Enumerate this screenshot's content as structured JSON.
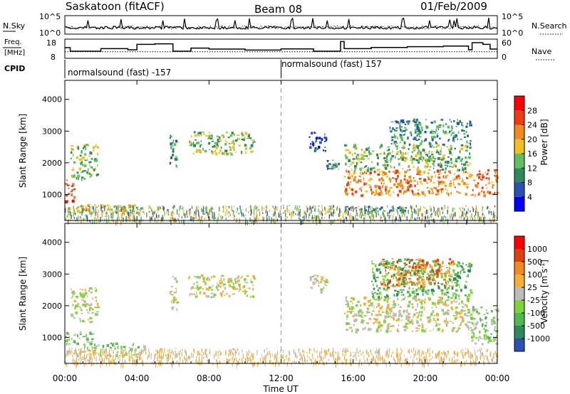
{
  "header": {
    "station": "Saskatoon (fitACF)",
    "beam": "Beam 08",
    "date": "01/Feb/2009"
  },
  "meta_panels": {
    "nsky": {
      "label": "N.Sky",
      "scale_top": "10^5",
      "scale_bottom": "10^0"
    },
    "nsearch": {
      "label": "N.Search",
      "scale_top": "10^5",
      "scale_bottom": "10^0"
    },
    "freq": {
      "label_top": "Freq.",
      "label_bottom": "[MHz]",
      "ticks": [
        "18",
        "8"
      ]
    },
    "nave": {
      "label": "Nave",
      "ticks": [
        "60",
        "0"
      ]
    },
    "cpid": {
      "label": "CPID",
      "segments": [
        {
          "text": "normalsound (fast) -157",
          "start_hour": 0,
          "end_hour": 12
        },
        {
          "text": "normalsound (fast) 157",
          "start_hour": 12,
          "end_hour": 24
        }
      ]
    },
    "freq_steps": [
      [
        0,
        13.5
      ],
      [
        0.3,
        11
      ],
      [
        2.0,
        12.8
      ],
      [
        3.5,
        12
      ],
      [
        4.0,
        15.8
      ],
      [
        5.0,
        16.2
      ],
      [
        6.0,
        11
      ],
      [
        7.0,
        13.2
      ],
      [
        8.0,
        12.5
      ],
      [
        10.0,
        11.8
      ],
      [
        12.0,
        12.6
      ],
      [
        13.8,
        11
      ],
      [
        15.3,
        17.8
      ],
      [
        15.5,
        12.8
      ],
      [
        17.0,
        13.6
      ],
      [
        19.0,
        14.2
      ],
      [
        21.0,
        14.6
      ],
      [
        22.4,
        12
      ],
      [
        22.6,
        17
      ],
      [
        23.2,
        15.8
      ],
      [
        23.6,
        12.5
      ],
      [
        24.0,
        12.5
      ]
    ],
    "nave_mean": 24
  },
  "chart_data": [
    {
      "type": "heatmap",
      "name": "Power",
      "ylabel": "Slant Range [km]",
      "ylim": [
        180,
        4600
      ],
      "yticks": [
        1000,
        2000,
        3000,
        4000
      ],
      "xlim": [
        0,
        24
      ],
      "colorbar": {
        "label": "Power [dB]",
        "ticks": [
          "4",
          "8",
          "12",
          "16",
          "20",
          "24",
          "28"
        ],
        "colors": [
          "#0000ff",
          "#2a4fb5",
          "#2e8a5a",
          "#5fc05f",
          "#f0c020",
          "#f08a20",
          "#f03a10",
          "#ff0000"
        ]
      },
      "regions": [
        {
          "t": [
            0.3,
            1.8
          ],
          "r": [
            1500,
            2600
          ],
          "level": 3
        },
        {
          "t": [
            0.0,
            0.5
          ],
          "r": [
            800,
            1500
          ],
          "level": 6
        },
        {
          "t": [
            0.0,
            4.5
          ],
          "r": [
            450,
            700
          ],
          "level": 4
        },
        {
          "t": [
            5.8,
            6.2
          ],
          "r": [
            1900,
            3000
          ],
          "level": 2
        },
        {
          "t": [
            6.8,
            10.5
          ],
          "r": [
            2300,
            3000
          ],
          "level": 3
        },
        {
          "t": [
            13.5,
            14.5
          ],
          "r": [
            2400,
            3000
          ],
          "level": 1
        },
        {
          "t": [
            14.5,
            15.2
          ],
          "r": [
            1800,
            2100
          ],
          "level": 2
        },
        {
          "t": [
            15.5,
            24.0
          ],
          "r": [
            1000,
            1800
          ],
          "level": 5
        },
        {
          "t": [
            15.5,
            22.5
          ],
          "r": [
            1800,
            2600
          ],
          "level": 3
        },
        {
          "t": [
            18.0,
            22.5
          ],
          "r": [
            2600,
            3400
          ],
          "level": 2
        },
        {
          "t": [
            15.5,
            19.0
          ],
          "r": [
            450,
            650
          ],
          "level": 2
        }
      ]
    },
    {
      "type": "heatmap",
      "name": "Velocity",
      "ylabel": "Slant Range [km]",
      "ylim": [
        180,
        4600
      ],
      "yticks": [
        1000,
        2000,
        3000,
        4000
      ],
      "xlim": [
        0,
        24
      ],
      "colorbar": {
        "label": "Velocity [m s^-1]",
        "ticks": [
          "1000",
          "500",
          "100",
          "25",
          "-25",
          "-100",
          "-500",
          "-1000"
        ],
        "colors": [
          "#2a4fb5",
          "#2e8a5a",
          "#4fb84f",
          "#7cd63a",
          "#bcbcbc",
          "#f5b03a",
          "#f08a20",
          "#e04010",
          "#ff0000"
        ]
      },
      "regions": [
        {
          "t": [
            0.3,
            1.8
          ],
          "r": [
            1500,
            2600
          ],
          "level": 4
        },
        {
          "t": [
            0.0,
            1.5
          ],
          "r": [
            800,
            1200
          ],
          "level": 3
        },
        {
          "t": [
            1.0,
            4.5
          ],
          "r": [
            600,
            850
          ],
          "level": 3
        },
        {
          "t": [
            0.0,
            4.0
          ],
          "r": [
            450,
            600
          ],
          "level": 4
        },
        {
          "t": [
            5.8,
            6.2
          ],
          "r": [
            1900,
            3000
          ],
          "level": 4
        },
        {
          "t": [
            6.8,
            10.5
          ],
          "r": [
            2300,
            3000
          ],
          "level": 4
        },
        {
          "t": [
            13.5,
            14.5
          ],
          "r": [
            2400,
            3000
          ],
          "level": 4
        },
        {
          "t": [
            15.5,
            22.5
          ],
          "r": [
            1200,
            2300
          ],
          "level": 4
        },
        {
          "t": [
            22.5,
            24.0
          ],
          "r": [
            800,
            2000
          ],
          "level": 3
        },
        {
          "t": [
            17.0,
            22.5
          ],
          "r": [
            2300,
            3500
          ],
          "level": 2
        },
        {
          "t": [
            17.5,
            21.5
          ],
          "r": [
            2600,
            3500
          ],
          "level": 6
        }
      ]
    }
  ],
  "xaxis": {
    "label": "Time UT",
    "ticks": [
      "00:00",
      "04:00",
      "08:00",
      "12:00",
      "16:00",
      "20:00",
      "00:00"
    ]
  }
}
